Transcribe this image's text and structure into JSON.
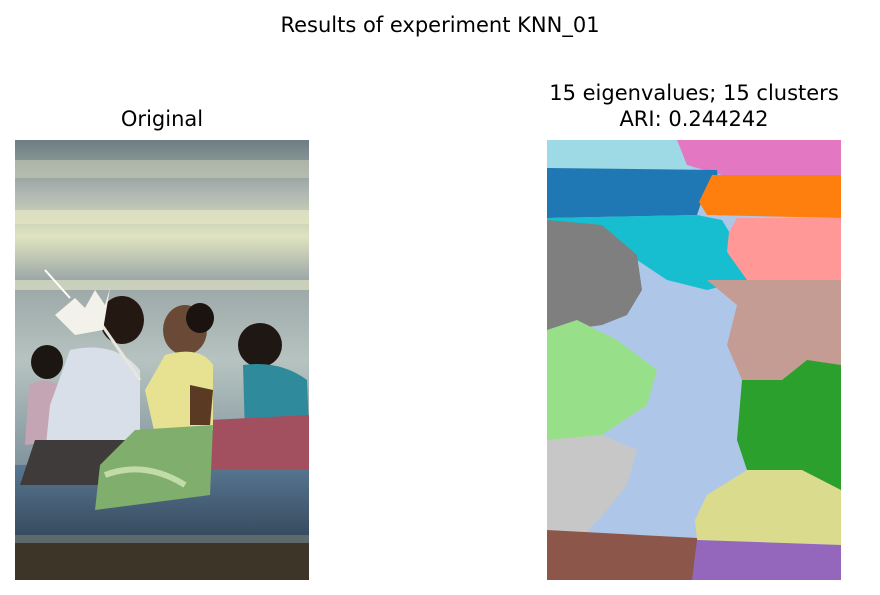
{
  "figure": {
    "suptitle": "Results of experiment KNN_01"
  },
  "left_panel": {
    "title": "Original",
    "image": "photo of kneeling people praying, one woman in yellow top holding a white flower offering"
  },
  "right_panel": {
    "title_line1": "15 eigenvalues; 15 clusters",
    "title_line2": "ARI: 0.244242",
    "image": "segmentation map with 15 colored regions",
    "clusters": 15,
    "ari": 0.244242
  },
  "palette": {
    "c_blue": "#1f77b4",
    "c_orange": "#ff7f0e",
    "c_green": "#2ca02c",
    "c_brown": "#8c564b",
    "c_purple": "#9467bd",
    "c_pink": "#e377c2",
    "c_gray": "#7f7f7f",
    "c_olive": "#dbdb8d",
    "c_cyan": "#17becf",
    "c_lightblue": "#9edae5",
    "c_lightred": "#ff9896",
    "c_lightbrown": "#c49c94",
    "c_lightgreen": "#98df8a",
    "c_lightgray": "#c7c7c7",
    "c_steelblue": "#aec7e8"
  }
}
